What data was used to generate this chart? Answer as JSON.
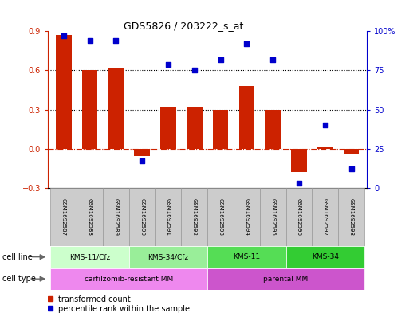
{
  "title": "GDS5826 / 203222_s_at",
  "samples": [
    "GSM1692587",
    "GSM1692588",
    "GSM1692589",
    "GSM1692590",
    "GSM1692591",
    "GSM1692592",
    "GSM1692593",
    "GSM1692594",
    "GSM1692595",
    "GSM1692596",
    "GSM1692597",
    "GSM1692598"
  ],
  "bar_values": [
    0.87,
    0.6,
    0.62,
    -0.06,
    0.32,
    0.32,
    0.3,
    0.48,
    0.3,
    -0.18,
    0.01,
    -0.04
  ],
  "dot_values": [
    97,
    94,
    94,
    17,
    79,
    75,
    82,
    92,
    82,
    3,
    40,
    12
  ],
  "bar_color": "#cc2200",
  "dot_color": "#0000cc",
  "ylim_left": [
    -0.3,
    0.9
  ],
  "ylim_right": [
    0,
    100
  ],
  "yticks_left": [
    -0.3,
    0.0,
    0.3,
    0.6,
    0.9
  ],
  "yticks_right": [
    0,
    25,
    50,
    75,
    100
  ],
  "ytick_labels_right": [
    "0",
    "25",
    "50",
    "75",
    "100%"
  ],
  "hlines": [
    0.6,
    0.3
  ],
  "zero_line_y": 0.0,
  "cell_line_groups": [
    {
      "label": "KMS-11/Cfz",
      "start": 0,
      "end": 3,
      "color": "#ccffcc"
    },
    {
      "label": "KMS-34/Cfz",
      "start": 3,
      "end": 6,
      "color": "#99ee99"
    },
    {
      "label": "KMS-11",
      "start": 6,
      "end": 9,
      "color": "#55dd55"
    },
    {
      "label": "KMS-34",
      "start": 9,
      "end": 12,
      "color": "#33cc33"
    }
  ],
  "cell_type_groups": [
    {
      "label": "carfilzomib-resistant MM",
      "start": 0,
      "end": 6,
      "color": "#ee88ee"
    },
    {
      "label": "parental MM",
      "start": 6,
      "end": 12,
      "color": "#cc55cc"
    }
  ],
  "cell_line_label": "cell line",
  "cell_type_label": "cell type",
  "legend_bar_label": "transformed count",
  "legend_dot_label": "percentile rank within the sample",
  "bg_color": "#ffffff",
  "sample_bg_color": "#cccccc",
  "sample_border_color": "#999999"
}
